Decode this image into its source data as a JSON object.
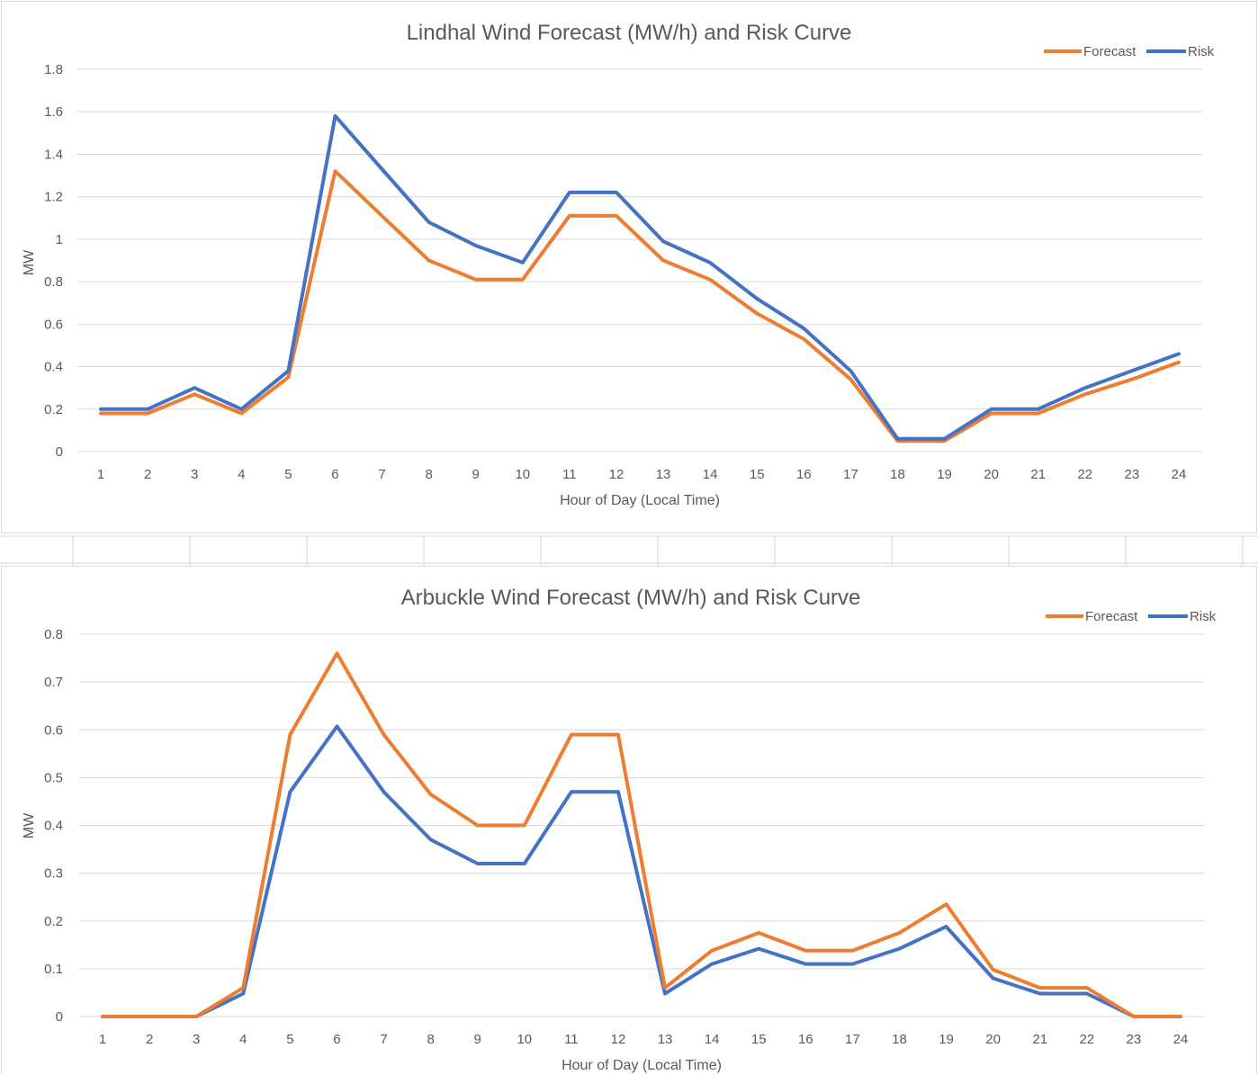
{
  "colors": {
    "forecast": "#ED7D31",
    "risk": "#4472C4",
    "grid": "#d9d9d9",
    "text": "#595959"
  },
  "chart_data": [
    {
      "type": "line",
      "title": "Lindhal Wind Forecast (MW/h) and Risk Curve",
      "xlabel": "Hour of Day (Local Time)",
      "ylabel": "MW",
      "categories": [
        "1",
        "2",
        "3",
        "4",
        "5",
        "6",
        "7",
        "8",
        "9",
        "10",
        "11",
        "12",
        "13",
        "14",
        "15",
        "16",
        "17",
        "18",
        "19",
        "20",
        "21",
        "22",
        "23",
        "24"
      ],
      "yticks": [
        "0",
        "0.2",
        "0.4",
        "0.6",
        "0.8",
        "1",
        "1.2",
        "1.4",
        "1.6",
        "1.8"
      ],
      "ylim": [
        0,
        1.8
      ],
      "grid": true,
      "legend": "top-right",
      "series": [
        {
          "name": "Forecast",
          "color": "#ED7D31",
          "values": [
            0.18,
            0.18,
            0.27,
            0.18,
            0.35,
            1.32,
            1.11,
            0.9,
            0.81,
            0.81,
            1.11,
            1.11,
            0.9,
            0.81,
            0.65,
            0.53,
            0.34,
            0.05,
            0.05,
            0.18,
            0.18,
            0.27,
            0.34,
            0.42
          ]
        },
        {
          "name": "Risk",
          "color": "#4472C4",
          "values": [
            0.2,
            0.2,
            0.3,
            0.2,
            0.38,
            1.58,
            1.33,
            1.08,
            0.97,
            0.89,
            1.22,
            1.22,
            0.99,
            0.89,
            0.72,
            0.58,
            0.38,
            0.06,
            0.06,
            0.2,
            0.2,
            0.3,
            0.38,
            0.46
          ]
        }
      ]
    },
    {
      "type": "line",
      "title": "Arbuckle Wind Forecast (MW/h) and Risk Curve",
      "xlabel": "Hour of Day (Local Time)",
      "ylabel": "MW",
      "categories": [
        "1",
        "2",
        "3",
        "4",
        "5",
        "6",
        "7",
        "8",
        "9",
        "10",
        "11",
        "12",
        "13",
        "14",
        "15",
        "16",
        "17",
        "18",
        "19",
        "20",
        "21",
        "22",
        "23",
        "24"
      ],
      "yticks": [
        "0",
        "0.1",
        "0.2",
        "0.3",
        "0.4",
        "0.5",
        "0.6",
        "0.7",
        "0.8"
      ],
      "ylim": [
        0,
        0.8
      ],
      "grid": true,
      "legend": "top-right",
      "series": [
        {
          "name": "Forecast",
          "color": "#ED7D31",
          "values": [
            0,
            0,
            0,
            0.06,
            0.59,
            0.76,
            0.59,
            0.465,
            0.4,
            0.4,
            0.59,
            0.59,
            0.06,
            0.138,
            0.175,
            0.138,
            0.138,
            0.175,
            0.235,
            0.098,
            0.06,
            0.06,
            0,
            0
          ]
        },
        {
          "name": "Risk",
          "color": "#4472C4",
          "values": [
            0,
            0,
            0,
            0.048,
            0.47,
            0.607,
            0.47,
            0.37,
            0.32,
            0.32,
            0.47,
            0.47,
            0.048,
            0.11,
            0.142,
            0.11,
            0.11,
            0.142,
            0.188,
            0.08,
            0.048,
            0.048,
            0,
            0
          ]
        }
      ]
    }
  ]
}
